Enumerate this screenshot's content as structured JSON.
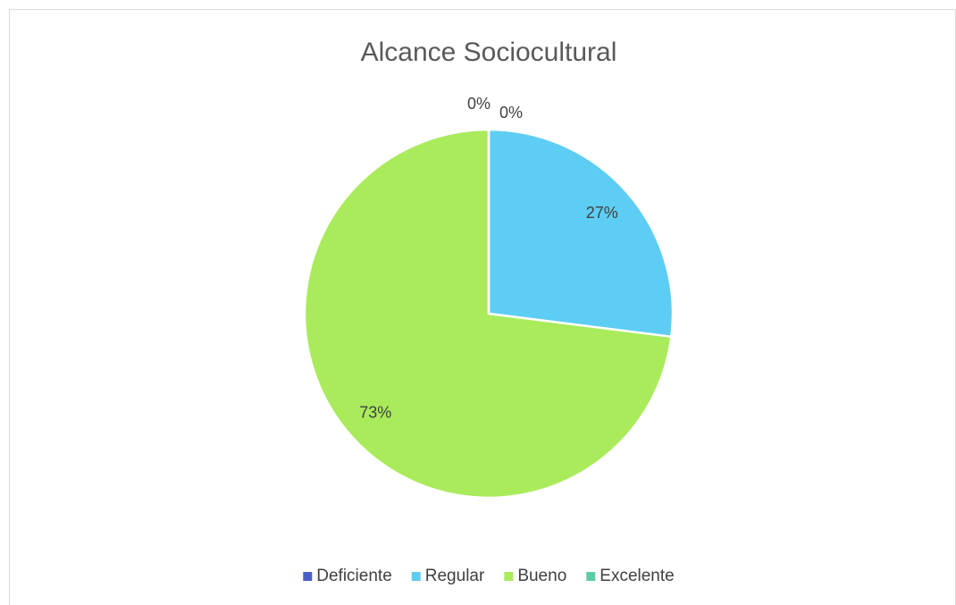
{
  "chart_data": {
    "type": "pie",
    "title": "Alcance Sociocultural",
    "categories": [
      "Deficiente",
      "Regular",
      "Bueno",
      "Excelente"
    ],
    "values": [
      0,
      27,
      73,
      0
    ],
    "value_labels": [
      "0%",
      "27%",
      "73%",
      "0%"
    ],
    "colors": [
      "#4a5fc9",
      "#5ecdf4",
      "#a9eb5b",
      "#5ccba6"
    ],
    "legend": "bottom"
  }
}
